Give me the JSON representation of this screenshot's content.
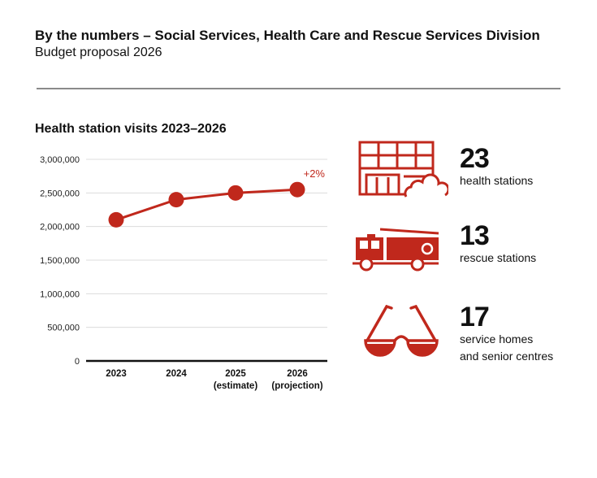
{
  "header": {
    "title": "By the numbers – Social Services, Health Care and Rescue Services Division",
    "subtitle": "Budget proposal 2026"
  },
  "chart_data": {
    "type": "line",
    "title": "Health station visits 2023–2026",
    "categories": [
      "2023",
      "2024",
      "2025",
      "2026"
    ],
    "category_sublabels": [
      "",
      "",
      "(estimate)",
      "(projection)"
    ],
    "values": [
      2100000,
      2400000,
      2500000,
      2550000
    ],
    "ylim": [
      0,
      3000000
    ],
    "yticks": [
      0,
      500000,
      1000000,
      1500000,
      2000000,
      2500000,
      3000000
    ],
    "ytick_labels": [
      "0",
      "500,000",
      "1,000,000",
      "1,500,000",
      "2,000,000",
      "2,500,000",
      "3,000,000"
    ],
    "annotation": "+2%",
    "grid": true,
    "color": "#c0281c"
  },
  "stats": [
    {
      "icon": "building-icon",
      "number": "23",
      "label": "health stations"
    },
    {
      "icon": "fire-truck-icon",
      "number": "13",
      "label": "rescue stations"
    },
    {
      "icon": "glasses-icon",
      "number": "17",
      "label": "service homes",
      "label2": "and senior centres"
    }
  ]
}
